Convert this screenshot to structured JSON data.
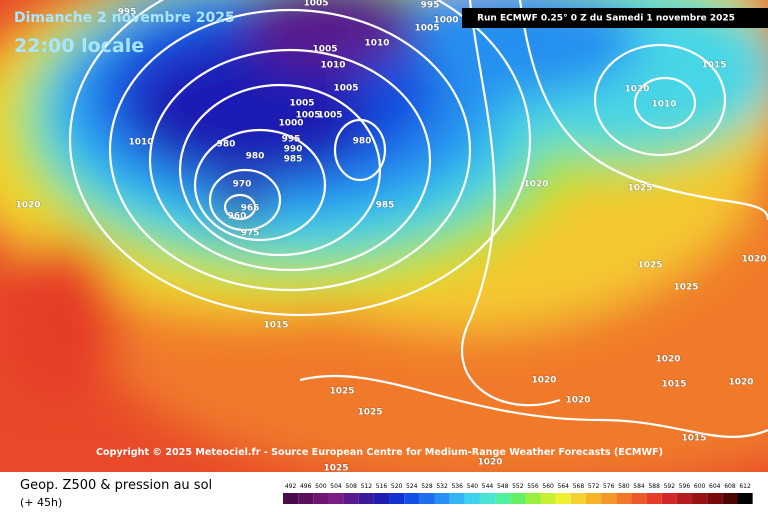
{
  "header": {
    "date": "Dimanche 2 novembre 2025",
    "time": "22:00 locale",
    "run": "Run ECMWF 0.25° 0 Z du Samedi 1 novembre 2025"
  },
  "copyright": "Copyright © 2025 Meteociel.fr - Source European Centre for Medium-Range Weather Forecasts (ECMWF)",
  "footer": {
    "title": "Geop. Z500 & pression au sol",
    "lead": "(+ 45h)"
  },
  "isobar_labels": [
    "995",
    "1005",
    "995",
    "1000",
    "1005",
    "1010",
    "1005",
    "1010",
    "1005",
    "1005",
    "1005",
    "1005",
    "1000",
    "995",
    "990",
    "985",
    "980",
    "980",
    "980",
    "970",
    "965",
    "960",
    "975",
    "985",
    "1010",
    "1020",
    "1015",
    "1020",
    "1025",
    "1015",
    "1020",
    "1010",
    "1025",
    "1025",
    "1020",
    "1020",
    "1015",
    "1020",
    "1020",
    "1020",
    "1025",
    "1025",
    "1015",
    "1020",
    "1025"
  ],
  "legend": [
    {
      "value": 492,
      "color": "#4b0a4b"
    },
    {
      "value": 496,
      "color": "#5c0f5c"
    },
    {
      "value": 500,
      "color": "#6e1670"
    },
    {
      "value": 504,
      "color": "#7a1e86"
    },
    {
      "value": 508,
      "color": "#5a1c8c"
    },
    {
      "value": 512,
      "color": "#3a1c9a"
    },
    {
      "value": 516,
      "color": "#1e1eb4"
    },
    {
      "value": 520,
      "color": "#1432d2"
    },
    {
      "value": 524,
      "color": "#1450e6"
    },
    {
      "value": 528,
      "color": "#1e6ef0"
    },
    {
      "value": 532,
      "color": "#2890f5"
    },
    {
      "value": 536,
      "color": "#32b4f5"
    },
    {
      "value": 540,
      "color": "#3cd2f0"
    },
    {
      "value": 544,
      "color": "#46e6d2"
    },
    {
      "value": 548,
      "color": "#50f0a0"
    },
    {
      "value": 552,
      "color": "#64f064"
    },
    {
      "value": 556,
      "color": "#96f03c"
    },
    {
      "value": 560,
      "color": "#c8f032"
    },
    {
      "value": 564,
      "color": "#f0f032"
    },
    {
      "value": 568,
      "color": "#f5d232"
    },
    {
      "value": 572,
      "color": "#f5b428"
    },
    {
      "value": 576,
      "color": "#f59628"
    },
    {
      "value": 580,
      "color": "#f07828"
    },
    {
      "value": 584,
      "color": "#eb5a28"
    },
    {
      "value": 588,
      "color": "#e63c28"
    },
    {
      "value": 592,
      "color": "#d22828"
    },
    {
      "value": 596,
      "color": "#b41e1e"
    },
    {
      "value": 600,
      "color": "#961414"
    },
    {
      "value": 604,
      "color": "#780a0a"
    },
    {
      "value": 608,
      "color": "#500505"
    },
    {
      "value": 612,
      "color": "#000000"
    }
  ]
}
